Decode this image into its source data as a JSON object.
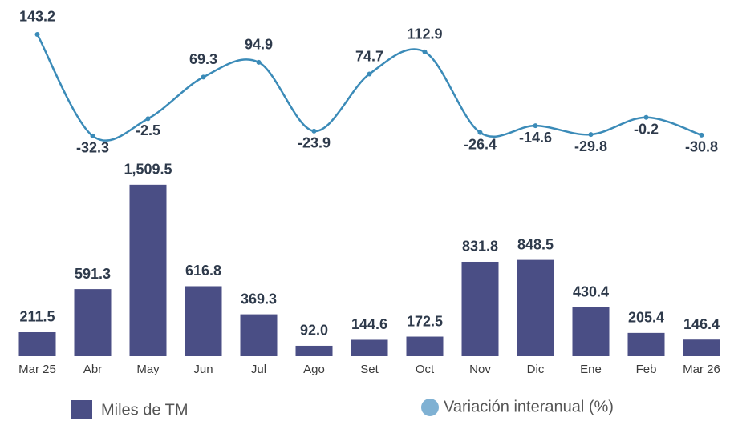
{
  "chart_data": {
    "type": "combo",
    "categories": [
      "Mar 25",
      "Abr",
      "May",
      "Jun",
      "Jul",
      "Ago",
      "Set",
      "Oct",
      "Nov",
      "Dic",
      "Ene",
      "Feb",
      "Mar 26"
    ],
    "series": [
      {
        "name": "Miles  de TM",
        "type": "bar",
        "color": "#4a4e85",
        "values": [
          211.5,
          591.3,
          1509.5,
          616.8,
          369.3,
          92.0,
          144.6,
          172.5,
          831.8,
          848.5,
          430.4,
          205.4,
          146.4
        ],
        "value_labels": [
          "211.5",
          "591.3",
          "1,509.5",
          "616.8",
          "369.3",
          "92.0",
          "144.6",
          "172.5",
          "831.8",
          "848.5",
          "430.4",
          "205.4",
          "146.4"
        ]
      },
      {
        "name": "Variación interanual (%)",
        "type": "line",
        "axis": "y2",
        "color": "#3b8bb8",
        "legend_color": "#7fb1d3",
        "values": [
          143.2,
          -32.3,
          -2.5,
          69.3,
          94.9,
          -23.9,
          74.7,
          112.9,
          -26.4,
          -14.6,
          -29.8,
          -0.2,
          -30.8
        ]
      }
    ],
    "ylim": [
      0,
      1600
    ],
    "y2lim": [
      -40,
      160
    ]
  }
}
